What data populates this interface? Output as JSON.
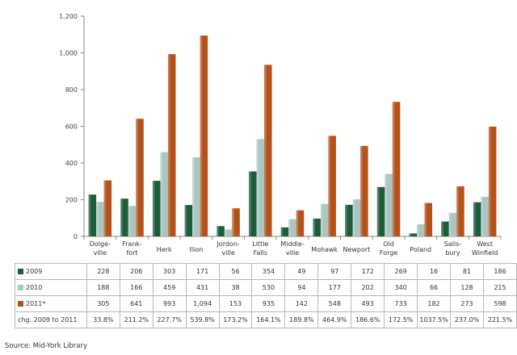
{
  "chart_data": {
    "type": "bar",
    "categories": [
      "Dolge-\nville",
      "Frank-\nfort",
      "Herk",
      "Ilion",
      "Jordon-\nville",
      "Little\nFalls",
      "Middle-\nville",
      "Mohawk",
      "Newport",
      "Old\nForge",
      "Poland",
      "Salis-\nbury",
      "West\nWinfield"
    ],
    "series": [
      {
        "name": "2009",
        "color": "#1e5c3c",
        "values": [
          228,
          206,
          303,
          171,
          56,
          354,
          49,
          97,
          172,
          269,
          16,
          81,
          186
        ],
        "labels": [
          "228",
          "206",
          "303",
          "171",
          "56",
          "354",
          "49",
          "97",
          "172",
          "269",
          "16",
          "81",
          "186"
        ]
      },
      {
        "name": "2010",
        "color": "#a9c6bf",
        "values": [
          188,
          166,
          459,
          431,
          38,
          530,
          94,
          177,
          202,
          340,
          66,
          128,
          215
        ],
        "labels": [
          "188",
          "166",
          "459",
          "431",
          "38",
          "530",
          "94",
          "177",
          "202",
          "340",
          "66",
          "128",
          "215"
        ]
      },
      {
        "name": "2011*",
        "color": "#b5521b",
        "values": [
          305,
          641,
          993,
          1094,
          153,
          935,
          142,
          548,
          493,
          733,
          182,
          273,
          598
        ],
        "labels": [
          "305",
          "641",
          "993",
          "1,094",
          "153",
          "935",
          "142",
          "548",
          "493",
          "733",
          "182",
          "273",
          "598"
        ]
      }
    ],
    "change_row": {
      "label": "chg. 2009 to 2011",
      "values": [
        "33.8%",
        "211.2%",
        "227.7%",
        "539.8%",
        "173.2%",
        "164.1%",
        "189.8%",
        "464.9%",
        "186.6%",
        "172.5%",
        "1037.5%",
        "237.0%",
        "221.5%"
      ]
    },
    "y_ticks": [
      0,
      200,
      400,
      600,
      800,
      1000,
      1200
    ],
    "y_tick_labels": [
      "0",
      "200",
      "400",
      "600",
      "800",
      "1,000",
      "1,200"
    ],
    "ylim": [
      0,
      1200
    ],
    "grid": false,
    "legend": "data-table",
    "title": "",
    "xlabel": "",
    "ylabel": ""
  },
  "source": "Source: Mid-York Library"
}
